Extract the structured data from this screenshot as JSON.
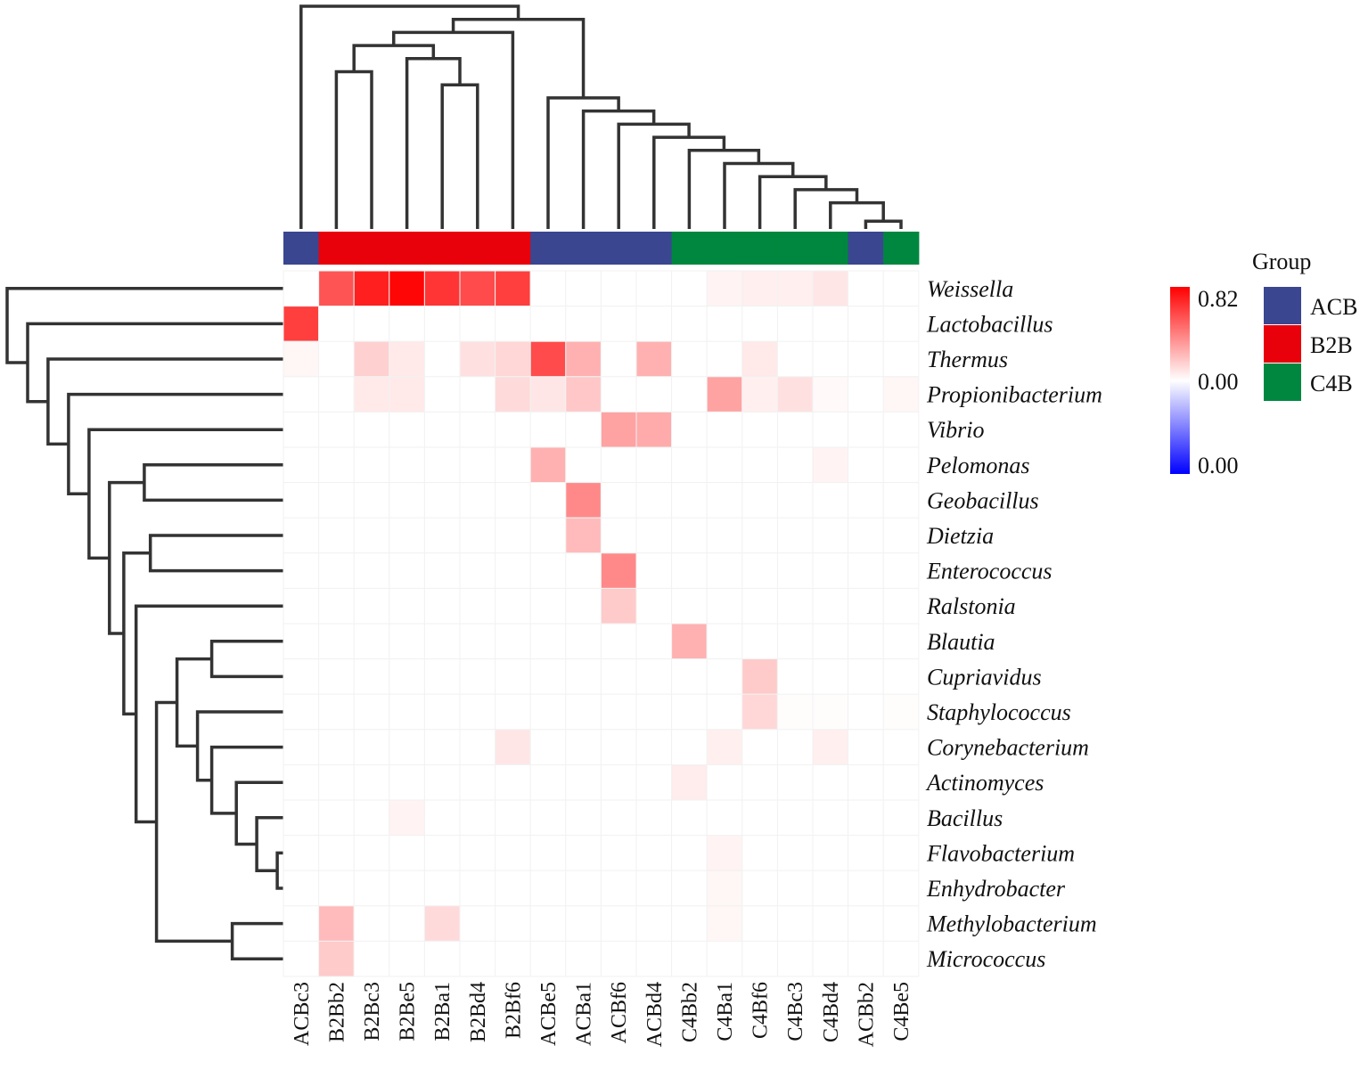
{
  "chart_data": {
    "type": "heatmap",
    "title": "",
    "columns": [
      "ACBc3",
      "B2Bb2",
      "B2Bc3",
      "B2Be5",
      "B2Ba1",
      "B2Bd4",
      "B2Bf6",
      "ACBe5",
      "ACBa1",
      "ACBf6",
      "ACBd4",
      "C4Bb2",
      "C4Ba1",
      "C4Bf6",
      "C4Bc3",
      "C4Bd4",
      "ACBb2",
      "C4Be5"
    ],
    "column_groups": [
      "ACB",
      "B2B",
      "B2B",
      "B2B",
      "B2B",
      "B2B",
      "B2B",
      "ACB",
      "ACB",
      "ACB",
      "ACB",
      "C4B",
      "C4B",
      "C4B",
      "C4B",
      "C4B",
      "ACB",
      "C4B"
    ],
    "rows": [
      "Weissella",
      "Lactobacillus",
      "Thermus",
      "Propionibacterium",
      "Vibrio",
      "Pelomonas",
      "Geobacillus",
      "Dietzia",
      "Enterococcus",
      "Ralstonia",
      "Blautia",
      "Cupriavidus",
      "Staphylococcus",
      "Corynebacterium",
      "Actinomyces",
      "Bacillus",
      "Flavobacterium",
      "Enhydrobacter",
      "Methylobacterium",
      "Micrococcus"
    ],
    "values": [
      [
        0,
        0.55,
        0.72,
        0.8,
        0.65,
        0.58,
        0.62,
        0,
        0,
        0,
        0,
        0,
        0.04,
        0.05,
        0.05,
        0.08,
        0,
        0
      ],
      [
        0.62,
        0,
        0,
        0,
        0,
        0,
        0,
        0,
        0,
        0,
        0,
        0,
        0,
        0,
        0,
        0,
        0,
        0
      ],
      [
        0.03,
        0,
        0.15,
        0.07,
        0,
        0.1,
        0.13,
        0.58,
        0.25,
        0,
        0.25,
        0,
        0,
        0.07,
        0,
        0,
        0,
        0
      ],
      [
        0,
        0,
        0.07,
        0.07,
        0,
        0,
        0.12,
        0.08,
        0.18,
        0,
        0,
        0,
        0.3,
        0.05,
        0.1,
        0.02,
        0,
        0.03
      ],
      [
        0,
        0,
        0,
        0,
        0,
        0,
        0,
        0,
        0,
        0.3,
        0.27,
        0,
        0,
        0,
        0,
        0,
        0,
        0
      ],
      [
        0,
        0,
        0,
        0,
        0,
        0,
        0,
        0.25,
        0,
        0,
        0,
        0,
        0,
        0,
        0,
        0.04,
        0,
        0
      ],
      [
        0,
        0,
        0,
        0,
        0,
        0,
        0,
        0,
        0.38,
        0,
        0,
        0,
        0,
        0,
        0,
        0,
        0,
        0
      ],
      [
        0,
        0,
        0,
        0,
        0,
        0,
        0,
        0,
        0.22,
        0,
        0,
        0,
        0,
        0,
        0,
        0,
        0,
        0
      ],
      [
        0,
        0,
        0,
        0,
        0,
        0,
        0,
        0,
        0,
        0.38,
        0,
        0,
        0,
        0,
        0,
        0,
        0,
        0
      ],
      [
        0,
        0,
        0,
        0,
        0,
        0,
        0,
        0,
        0,
        0.17,
        0,
        0,
        0,
        0,
        0,
        0,
        0,
        0
      ],
      [
        0,
        0,
        0,
        0,
        0,
        0,
        0,
        0,
        0,
        0,
        0,
        0.25,
        0,
        0,
        0,
        0,
        0,
        0
      ],
      [
        0,
        0,
        0,
        0,
        0,
        0,
        0,
        0,
        0,
        0,
        0,
        0,
        0,
        0.17,
        0,
        0,
        0,
        0
      ],
      [
        0,
        0,
        0,
        0,
        0,
        0,
        0,
        0,
        0,
        0,
        0,
        0,
        0,
        0.13,
        0.01,
        0.01,
        0,
        0.01
      ],
      [
        0,
        0,
        0,
        0,
        0,
        0,
        0.08,
        0,
        0,
        0,
        0,
        0,
        0.05,
        0,
        0,
        0.05,
        0,
        0
      ],
      [
        0,
        0,
        0,
        0,
        0,
        0,
        0,
        0,
        0,
        0,
        0,
        0.06,
        0,
        0,
        0,
        0,
        0,
        0
      ],
      [
        0,
        0,
        0,
        0.04,
        0,
        0,
        0,
        0,
        0,
        0,
        0,
        0,
        0,
        0,
        0,
        0,
        0,
        0
      ],
      [
        0,
        0,
        0,
        0,
        0,
        0,
        0,
        0,
        0,
        0,
        0,
        0,
        0.04,
        0,
        0,
        0,
        0,
        0
      ],
      [
        0,
        0,
        0,
        0,
        0,
        0,
        0,
        0,
        0,
        0,
        0,
        0,
        0.03,
        0,
        0,
        0,
        0,
        0
      ],
      [
        0,
        0.22,
        0,
        0,
        0.12,
        0,
        0,
        0,
        0,
        0,
        0,
        0,
        0.03,
        0,
        0,
        0,
        0,
        0
      ],
      [
        0,
        0.17,
        0,
        0,
        0,
        0,
        0,
        0,
        0,
        0,
        0,
        0,
        0,
        0,
        0,
        0,
        0,
        0
      ]
    ],
    "value_range": [
      0,
      0.82
    ],
    "colorbar": {
      "labels": [
        "0.82",
        "0.00",
        "0.00"
      ],
      "colors": [
        "#ff0000",
        "#ffffff",
        "#0000ff"
      ]
    },
    "legend": {
      "title": "Group",
      "items": [
        {
          "label": "ACB",
          "color": "#3a4690"
        },
        {
          "label": "B2B",
          "color": "#e8000b"
        },
        {
          "label": "C4B",
          "color": "#00873f"
        }
      ]
    },
    "column_dendrogram": {
      "merges": [
        [
          17,
          18,
          0.6
        ],
        [
          16,
          19,
          2
        ],
        [
          15,
          20,
          3
        ],
        [
          14,
          21,
          4
        ],
        [
          13,
          22,
          5
        ],
        [
          12,
          23,
          6
        ],
        [
          11,
          24,
          7
        ],
        [
          10,
          25,
          8
        ],
        [
          9,
          26,
          9
        ],
        [
          8,
          27,
          10
        ],
        [
          6,
          5,
          11
        ],
        [
          3,
          2,
          12
        ],
        [
          4,
          29,
          13
        ],
        [
          31,
          30,
          14
        ],
        [
          7,
          32,
          15
        ],
        [
          33,
          28,
          16
        ],
        [
          1,
          34,
          17
        ]
      ]
    },
    "row_dendrogram": {
      "merges": [
        [
          17,
          18,
          0.3
        ],
        [
          16,
          21,
          1.3
        ],
        [
          15,
          22,
          2.3
        ],
        [
          19,
          20,
          2.5
        ],
        [
          14,
          23,
          3.5
        ],
        [
          13,
          25,
          4.2
        ],
        [
          12,
          11,
          3.5
        ],
        [
          27,
          26,
          5.2
        ],
        [
          28,
          24,
          6.2
        ],
        [
          10,
          29,
          7.2
        ],
        [
          9,
          8,
          6.5
        ],
        [
          7,
          6,
          6.8
        ],
        [
          31,
          30,
          7.8
        ],
        [
          32,
          33,
          8.5
        ],
        [
          34,
          5,
          9.5
        ],
        [
          35,
          4,
          10.5
        ],
        [
          36,
          3,
          11.5
        ],
        [
          37,
          2,
          12.5
        ],
        [
          38,
          1,
          13.5
        ]
      ]
    }
  }
}
